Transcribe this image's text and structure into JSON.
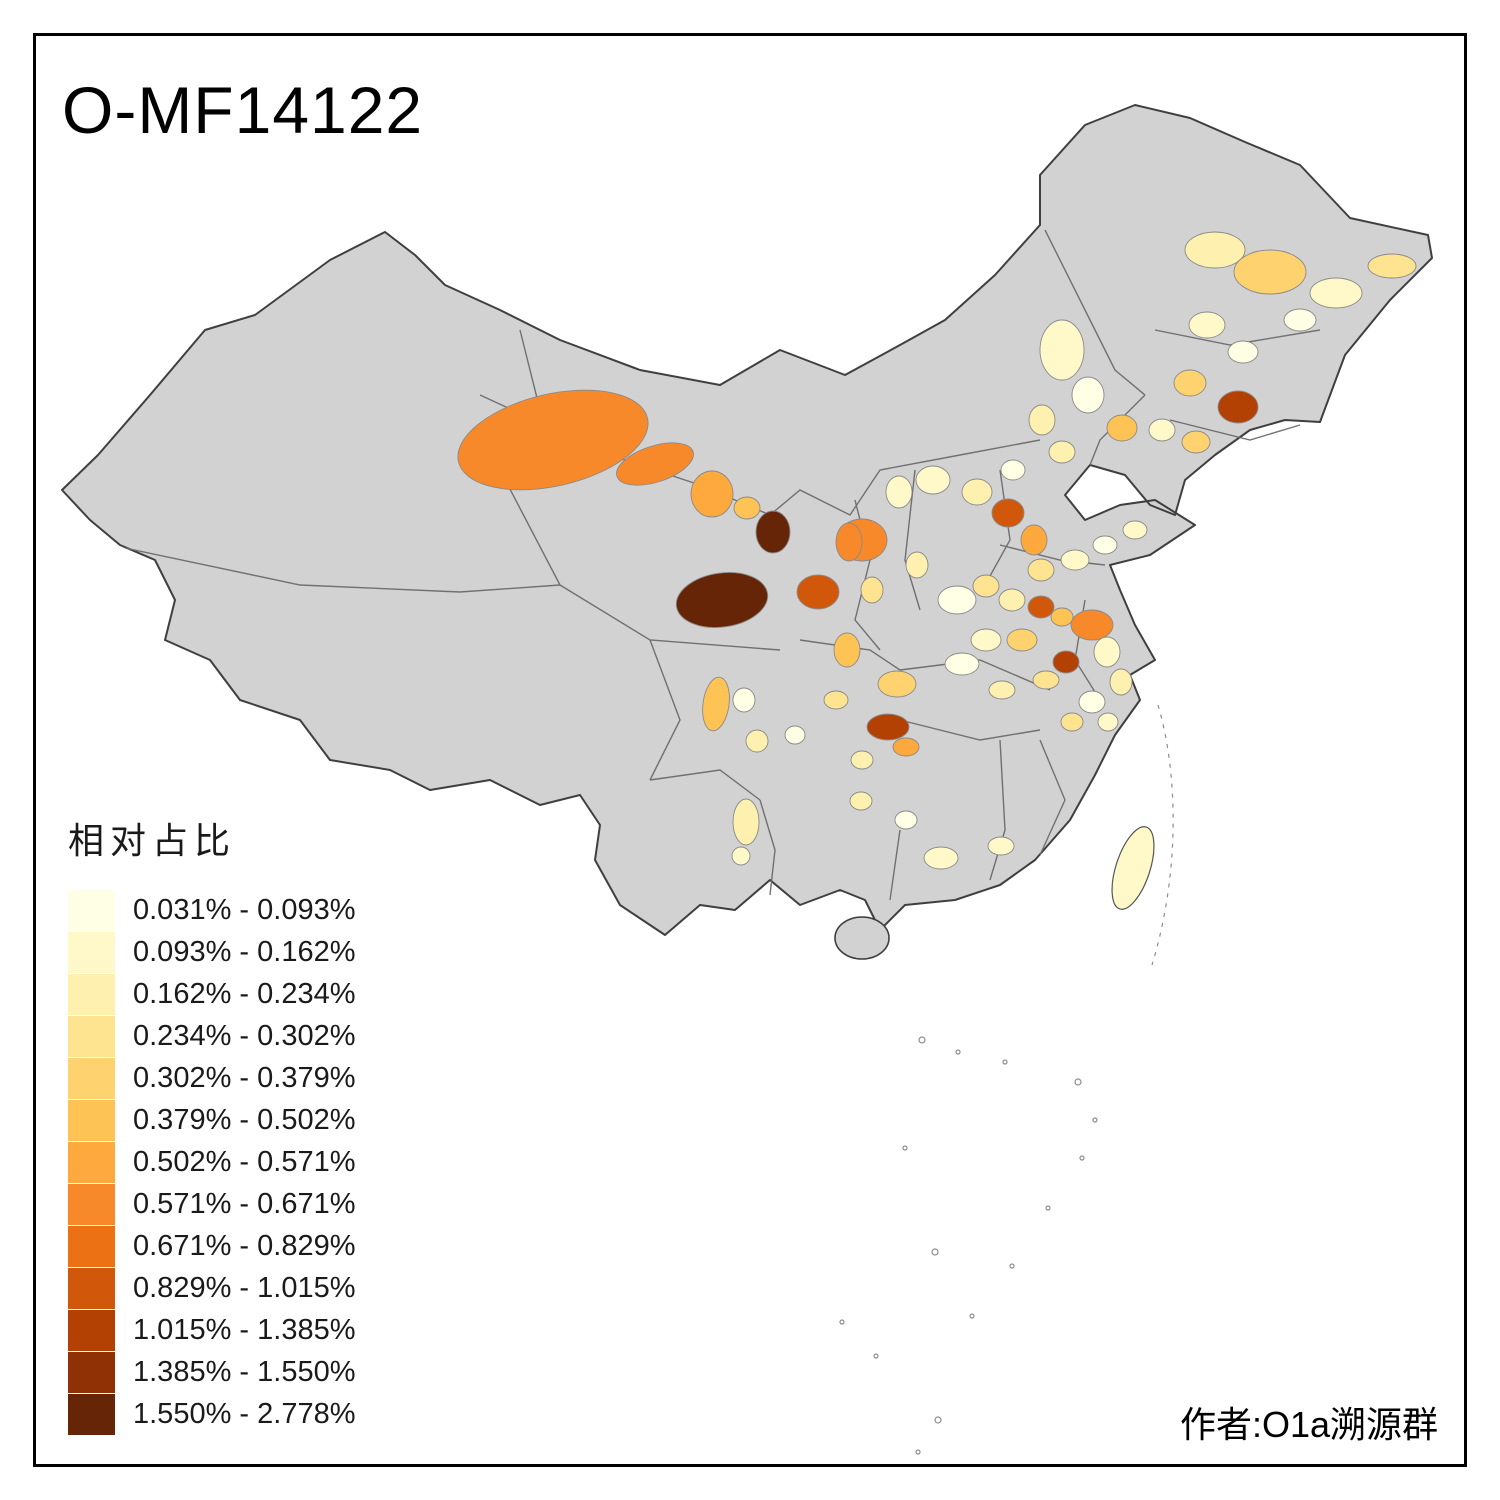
{
  "title": "O-MF14122",
  "attribution": "作者:O1a溯源群",
  "legend": {
    "title": "相对占比",
    "bins": [
      {
        "label": "0.031% - 0.093%",
        "color": "#FFFFE5"
      },
      {
        "label": "0.093% - 0.162%",
        "color": "#FFF9C9"
      },
      {
        "label": "0.162% - 0.234%",
        "color": "#FEF0AE"
      },
      {
        "label": "0.234% - 0.302%",
        "color": "#FEE391"
      },
      {
        "label": "0.302% - 0.379%",
        "color": "#FED36F"
      },
      {
        "label": "0.379% - 0.502%",
        "color": "#FEC355"
      },
      {
        "label": "0.502% - 0.571%",
        "color": "#FEA93E"
      },
      {
        "label": "0.571% - 0.671%",
        "color": "#F8892A"
      },
      {
        "label": "0.671% - 0.829%",
        "color": "#EC7014"
      },
      {
        "label": "0.829% - 1.015%",
        "color": "#D1570A"
      },
      {
        "label": "1.015% - 1.385%",
        "color": "#B44104"
      },
      {
        "label": "1.385% - 1.550%",
        "color": "#8F3104"
      },
      {
        "label": "1.550% - 2.778%",
        "color": "#662506"
      }
    ]
  },
  "map": {
    "description": "Choropleth map of China prefectures showing relative share of O-MF14122",
    "base_color": "#D2D2D2",
    "boundary_color": "#4A4A4A",
    "background_color": "#FFFFFF"
  }
}
